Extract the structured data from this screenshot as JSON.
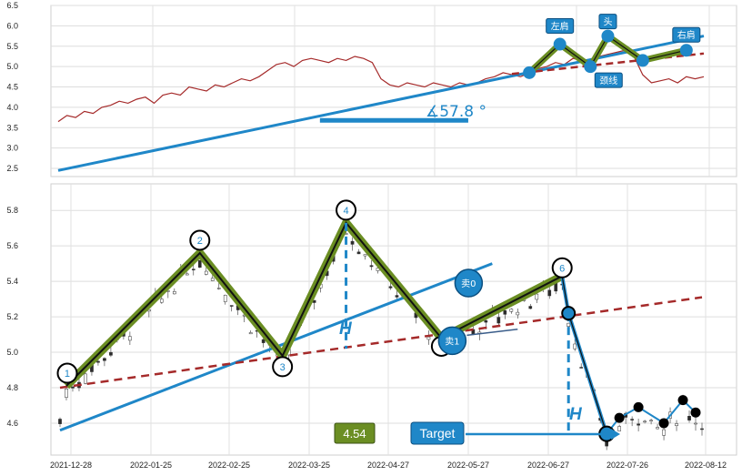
{
  "colors": {
    "price": "#a52a2a",
    "trend": "#1f87c8",
    "neckline": "#a52a2a",
    "pattern_fill": "#6b8e23",
    "pattern_line": "#111111",
    "label_bg": "#1f87c8",
    "value_badge": "#6b8e23"
  },
  "chart_data": [
    {
      "type": "line",
      "panel": "top",
      "ylim": [
        2.3,
        6.5
      ],
      "yticks": [
        "2.5",
        "3.0",
        "3.5",
        "4.0",
        "4.5",
        "5.0",
        "5.5",
        "6.0",
        "6.5"
      ],
      "grid": true,
      "series": [
        {
          "values": [
            3.65,
            3.8,
            3.75,
            3.9,
            3.85,
            4.0,
            4.05,
            4.15,
            4.1,
            4.2,
            4.25,
            4.1,
            4.3,
            4.35,
            4.3,
            4.5,
            4.45,
            4.4,
            4.55,
            4.5,
            4.6,
            4.7,
            4.65,
            4.75,
            4.9,
            5.05,
            5.1,
            5.0,
            5.15,
            5.2,
            5.15,
            5.1,
            5.2,
            5.15,
            5.25,
            5.2,
            5.1,
            4.7,
            4.55,
            4.5,
            4.6,
            4.55,
            4.5,
            4.6,
            4.55,
            4.5,
            4.6,
            4.55,
            4.6,
            4.7,
            4.75,
            4.85,
            4.8,
            4.75,
            4.85,
            4.95,
            5.0,
            5.1,
            5.05,
            5.2,
            5.15,
            5.1,
            5.25,
            5.3,
            5.35,
            5.4,
            5.25,
            4.8,
            4.6,
            4.65,
            4.7,
            4.6,
            4.75,
            4.7,
            4.75
          ]
        }
      ],
      "trendline": {
        "start": [
          0,
          2.45
        ],
        "end": [
          74,
          5.75
        ]
      },
      "neckline": {
        "start": [
          52,
          4.82
        ],
        "end": [
          74,
          5.32
        ]
      },
      "pattern": [
        {
          "x": 54,
          "y": 4.85,
          "label": ""
        },
        {
          "x": 57.5,
          "y": 5.55,
          "label": "左肩"
        },
        {
          "x": 61,
          "y": 5.0,
          "label": "颈线"
        },
        {
          "x": 63,
          "y": 5.75,
          "label": "头"
        },
        {
          "x": 67,
          "y": 5.15,
          "label": ""
        },
        {
          "x": 72,
          "y": 5.4,
          "label": "右肩"
        }
      ],
      "slope_bar": {
        "start": [
          30,
          3.68
        ],
        "end": [
          47,
          3.68
        ]
      },
      "angle_label": "∡57.8 °"
    },
    {
      "type": "candlestick",
      "panel": "bottom",
      "ylim": [
        4.42,
        5.95
      ],
      "yticks": [
        "4.6",
        "4.8",
        "5.0",
        "5.2",
        "5.4",
        "5.6",
        "5.8"
      ],
      "xticks": [
        "2021-12-28",
        "2022-01-25",
        "2022-02-25",
        "2022-03-25",
        "2022-04-27",
        "2022-05-27",
        "2022-06-27",
        "2022-07-26",
        "2022-08-12"
      ],
      "grid": true,
      "trendline": {
        "start": [
          0,
          4.56
        ],
        "end": [
          68,
          5.5
        ]
      },
      "neckline": {
        "start": [
          0,
          4.8
        ],
        "end": [
          101,
          5.31
        ]
      },
      "points": [
        {
          "x": 1,
          "y": 4.81,
          "label": "1"
        },
        {
          "x": 22,
          "y": 5.56,
          "label": "2"
        },
        {
          "x": 35,
          "y": 4.98,
          "label": "3"
        },
        {
          "x": 45,
          "y": 5.73,
          "label": "4"
        },
        {
          "x": 60,
          "y": 5.08,
          "label": ""
        },
        {
          "x": 79,
          "y": 5.43,
          "label": "6"
        }
      ],
      "sell_points": [
        {
          "x": 64,
          "y": 5.38,
          "label": "卖0"
        },
        {
          "x": 62,
          "y": 5.07,
          "label": "卖1"
        }
      ],
      "drop_path": [
        [
          79,
          5.43
        ],
        [
          80,
          5.22
        ],
        [
          86,
          4.54
        ]
      ],
      "black_path": [
        [
          86,
          4.54
        ],
        [
          88,
          4.63
        ],
        [
          91,
          4.69
        ],
        [
          95,
          4.6
        ],
        [
          98,
          4.73
        ],
        [
          100,
          4.66
        ]
      ],
      "height_marker": "H",
      "value_badge": "4.54",
      "target_label": "Target"
    }
  ]
}
